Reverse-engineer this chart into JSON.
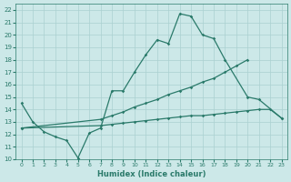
{
  "background_color": "#cce8e8",
  "grid_color": "#aad0d0",
  "line_color": "#2a7a6a",
  "xlabel": "Humidex (Indice chaleur)",
  "xlim": [
    -0.5,
    23.5
  ],
  "ylim": [
    10,
    22.5
  ],
  "yticks": [
    10,
    11,
    12,
    13,
    14,
    15,
    16,
    17,
    18,
    19,
    20,
    21,
    22
  ],
  "xticks": [
    0,
    1,
    2,
    3,
    4,
    5,
    6,
    7,
    8,
    9,
    10,
    11,
    12,
    13,
    14,
    15,
    16,
    17,
    18,
    19,
    20,
    21,
    22,
    23
  ],
  "series": [
    {
      "x": [
        0,
        1,
        2,
        3,
        4,
        5,
        6,
        7,
        8,
        9,
        10,
        11,
        12,
        13,
        14,
        15,
        16,
        17,
        18,
        20,
        21,
        23
      ],
      "y": [
        14.5,
        13.0,
        12.2,
        11.8,
        11.5,
        10.1,
        12.1,
        12.5,
        15.5,
        15.5,
        17.0,
        18.4,
        19.6,
        19.3,
        21.7,
        21.5,
        20.0,
        19.7,
        18.0,
        15.0,
        14.8,
        13.3
      ]
    },
    {
      "x": [
        0,
        7,
        8,
        9,
        10,
        11,
        12,
        13,
        14,
        15,
        16,
        17,
        18,
        19,
        20
      ],
      "y": [
        12.5,
        13.2,
        13.5,
        13.8,
        14.2,
        14.5,
        14.8,
        15.2,
        15.5,
        15.8,
        16.2,
        16.5,
        17.0,
        17.5,
        18.0
      ]
    },
    {
      "x": [
        0,
        7,
        8,
        9,
        10,
        11,
        12,
        13,
        14,
        15,
        16,
        17,
        18,
        19,
        20,
        21,
        22,
        23
      ],
      "y": [
        12.5,
        12.7,
        12.8,
        12.9,
        13.0,
        13.1,
        13.2,
        13.3,
        13.4,
        13.5,
        13.5,
        13.6,
        13.7,
        13.8,
        13.9,
        14.0,
        14.0,
        13.3
      ]
    }
  ]
}
